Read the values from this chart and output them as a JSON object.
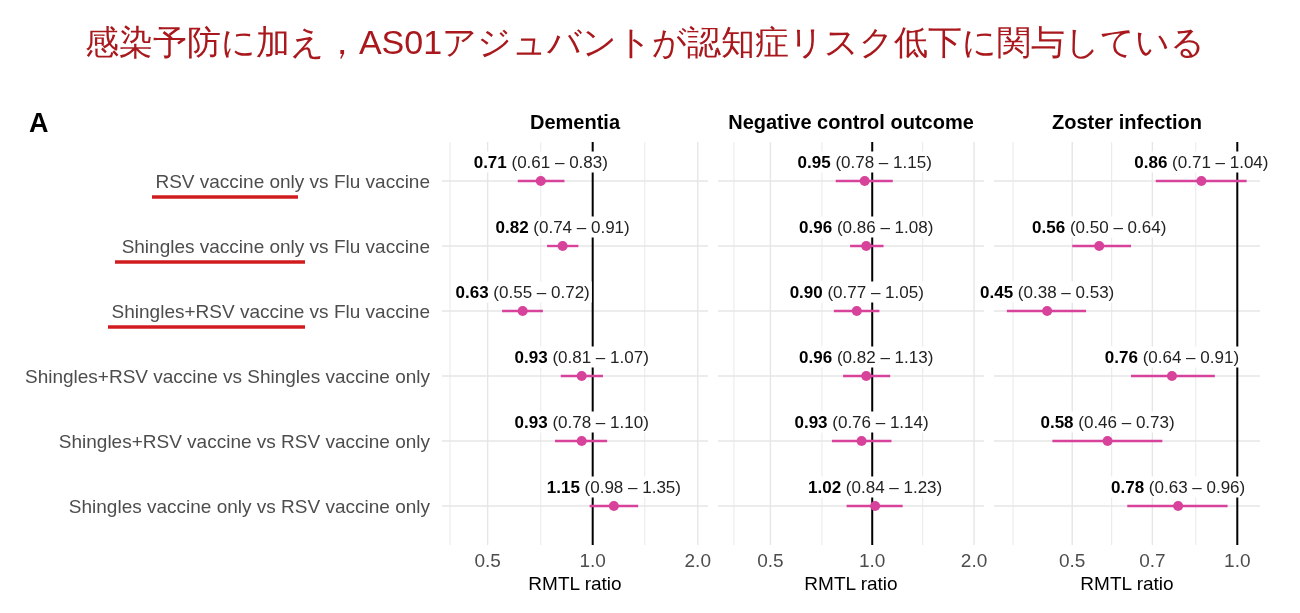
{
  "chart_data": [
    {
      "type": "scatter",
      "orientation": "horizontal",
      "title": "Dementia",
      "xlabel": "RMTL ratio",
      "annotations": [
        "感染予防に加え，AS01アジュバントが認知症リスク低下に関与している",
        "A"
      ],
      "categories": [
        "RSV vaccine only vs Flu vaccine",
        "Shingles vaccine only vs Flu vaccine",
        "Shingles+RSV vaccine vs Flu vaccine",
        "Shingles+RSV vaccine vs Shingles vaccine only",
        "Shingles+RSV vaccine vs RSV vaccine only",
        "Shingles vaccine only vs RSV vaccine only"
      ],
      "values": [
        0.71,
        0.82,
        0.63,
        0.93,
        0.93,
        1.15
      ],
      "errors": [
        [
          0.61,
          0.83
        ],
        [
          0.74,
          0.91
        ],
        [
          0.55,
          0.72
        ],
        [
          0.81,
          1.07
        ],
        [
          0.78,
          1.1
        ],
        [
          0.98,
          1.35
        ]
      ],
      "value_labels": [
        "**0.71** (0.61 – 0.83)",
        "**0.82** (0.74 – 0.91)",
        "**0.63** (0.55 – 0.72)",
        "**0.93** (0.81 – 1.07)",
        "**0.93** (0.78 – 1.10)",
        "**1.15** (0.98 – 1.35)"
      ],
      "color": "#d7429b",
      "marker": "circle",
      "log": "x",
      "xlim": [
        0.37,
        2.14
      ],
      "xticks": [
        {
          "value": 0.39,
          "label": null
        },
        {
          "value": 0.5,
          "label": "0.5"
        },
        {
          "value": 0.71,
          "label": null
        },
        {
          "value": 1,
          "label": "1.0"
        },
        {
          "value": 1.41,
          "label": null
        },
        {
          "value": 2,
          "label": "2.0"
        }
      ],
      "grid": true,
      "ref_lines": [
        {
          "axis": "x",
          "value": 1,
          "color": "#000000"
        }
      ]
    },
    {
      "type": "scatter",
      "orientation": "horizontal",
      "title": "Negative control outcome",
      "xlabel": "RMTL ratio",
      "tick_labels": "x",
      "categories": [
        null,
        null,
        null,
        null,
        null,
        null
      ],
      "values": [
        0.95,
        0.96,
        0.9,
        0.96,
        0.93,
        1.02
      ],
      "errors": [
        [
          0.78,
          1.15
        ],
        [
          0.86,
          1.08
        ],
        [
          0.77,
          1.05
        ],
        [
          0.82,
          1.13
        ],
        [
          0.76,
          1.14
        ],
        [
          0.84,
          1.23
        ]
      ],
      "value_labels": [
        "**0.95** (0.78 – 1.15)",
        "**0.96** (0.86 – 1.08)",
        "**0.90** (0.77 – 1.05)",
        "**0.96** (0.82 – 1.13)",
        "**0.93** (0.76 – 1.14)",
        "**1.02** (0.84 – 1.23)"
      ],
      "color": "#d7429b",
      "marker": "circle",
      "log": "x",
      "xlim": [
        0.35,
        2.14
      ],
      "xticks": [
        {
          "value": 0.39,
          "label": null
        },
        {
          "value": 0.5,
          "label": "0.5"
        },
        {
          "value": 0.71,
          "label": null
        },
        {
          "value": 1,
          "label": "1.0"
        },
        {
          "value": 1.41,
          "label": null
        },
        {
          "value": 2,
          "label": "2.0"
        }
      ],
      "grid": true,
      "ref_lines": [
        {
          "axis": "x",
          "value": 1,
          "color": "#000000"
        }
      ]
    },
    {
      "type": "scatter",
      "orientation": "horizontal",
      "title": "Zoster infection",
      "xlabel": "RMTL ratio",
      "tick_labels": "x",
      "categories": [
        null,
        null,
        null,
        null,
        null,
        null
      ],
      "values": [
        0.86,
        0.56,
        0.45,
        0.76,
        0.58,
        0.78
      ],
      "errors": [
        [
          0.71,
          1.04
        ],
        [
          0.5,
          0.64
        ],
        [
          0.38,
          0.53
        ],
        [
          0.64,
          0.91
        ],
        [
          0.46,
          0.73
        ],
        [
          0.63,
          0.96
        ]
      ],
      "value_labels": [
        "**0.86** (0.71 – 1.04)",
        "**0.56** (0.50 – 0.64)",
        "**0.45** (0.38 – 0.53)",
        "**0.76** (0.64 – 0.91)",
        "**0.58** (0.46 – 0.73)",
        "**0.78** (0.63 – 0.96)"
      ],
      "color": "#d7429b",
      "marker": "circle",
      "log": "x",
      "xlim": [
        0.36,
        1.1
      ],
      "xticks": [
        {
          "value": 0.39,
          "label": null
        },
        {
          "value": 0.5,
          "label": "0.5"
        },
        {
          "value": 0.59,
          "label": null
        },
        {
          "value": 0.7,
          "label": "0.7"
        },
        {
          "value": 0.84,
          "label": null
        },
        {
          "value": 1,
          "label": "1.0"
        }
      ],
      "grid": true,
      "ref_lines": [
        {
          "axis": "x",
          "value": 1,
          "color": "#000000"
        }
      ]
    }
  ]
}
